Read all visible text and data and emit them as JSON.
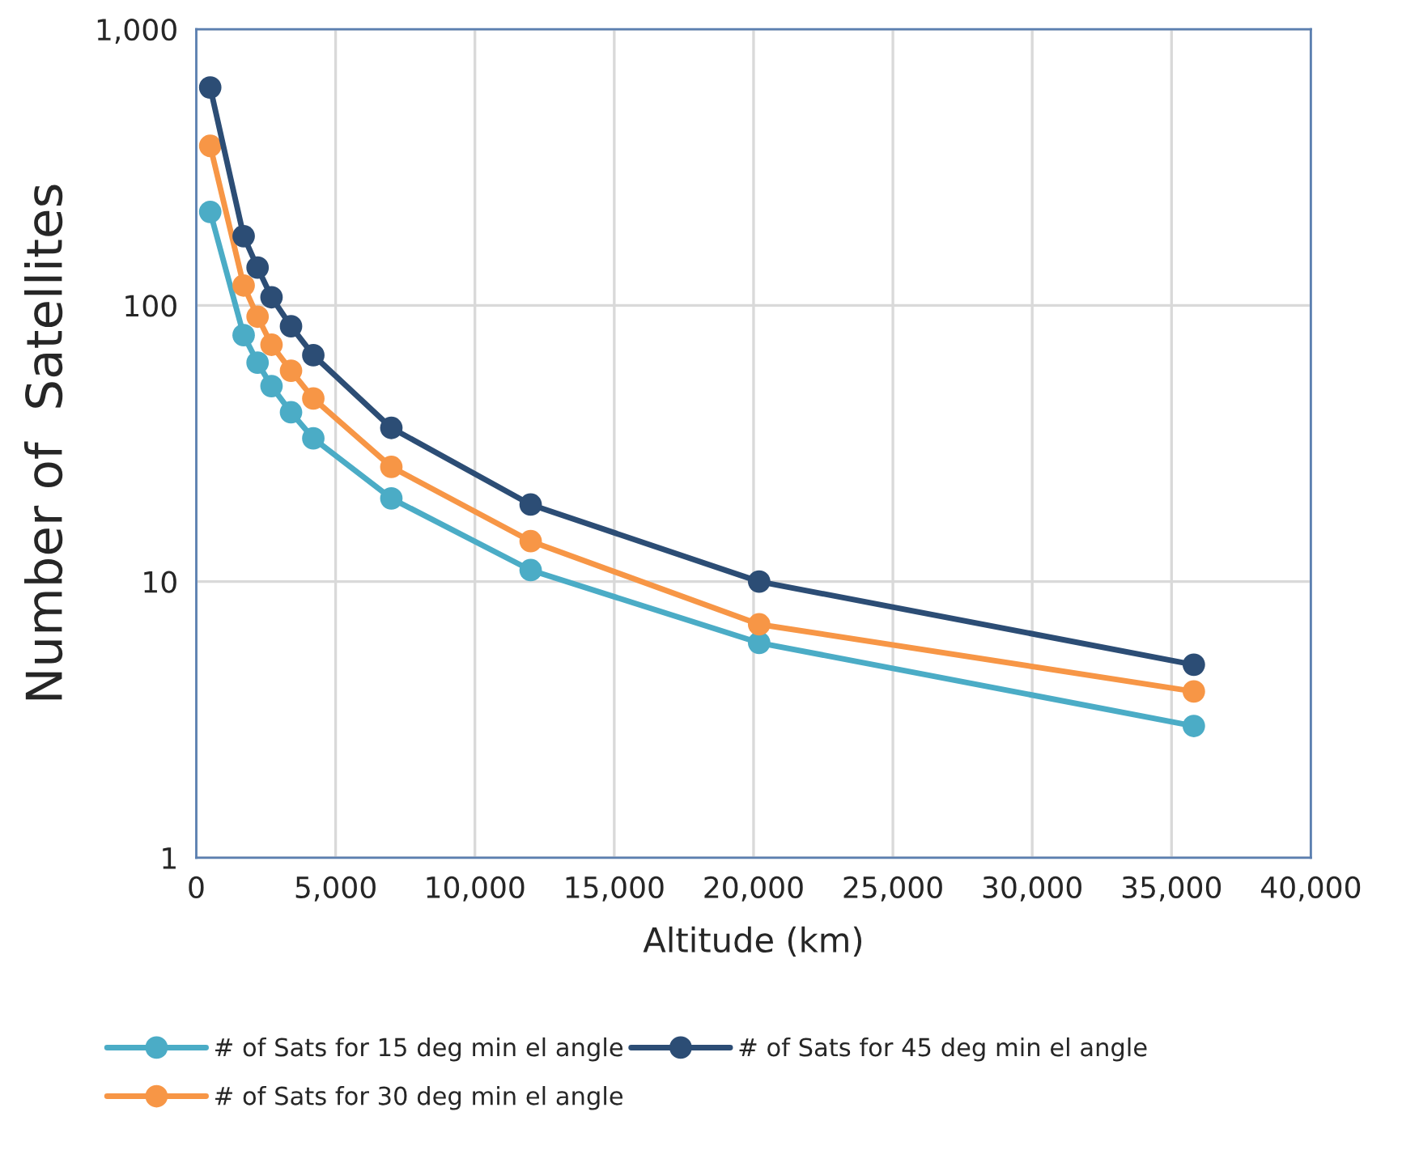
{
  "chart_data": {
    "type": "line",
    "xlabel": "Altitude (km)",
    "ylabel": "Number of  Satellites",
    "x": [
      500,
      1700,
      2200,
      2700,
      3400,
      4200,
      7000,
      12000,
      20200,
      35800
    ],
    "series": [
      {
        "name": "# of Sats for 15 deg min el angle",
        "color": "#4bacc6",
        "values": [
          218,
          78,
          62,
          51,
          41,
          33,
          20,
          11,
          6,
          3
        ]
      },
      {
        "name": "# of Sats for 30 deg min el angle",
        "color": "#f79646",
        "values": [
          378,
          118,
          91,
          72,
          58,
          46,
          26,
          14,
          7,
          4
        ]
      },
      {
        "name": "# of Sats for 45 deg min el angle",
        "color": "#2c4d75",
        "values": [
          615,
          178,
          137,
          107,
          84,
          66,
          36,
          19,
          10,
          5
        ]
      }
    ],
    "log": true,
    "xlim": [
      0,
      40000
    ],
    "xticks": [
      {
        "value": 0,
        "label": "0"
      },
      {
        "value": 5000,
        "label": "5,000"
      },
      {
        "value": 10000,
        "label": "10,000"
      },
      {
        "value": 15000,
        "label": "15,000"
      },
      {
        "value": 20000,
        "label": "20,000"
      },
      {
        "value": 25000,
        "label": "25,000"
      },
      {
        "value": 30000,
        "label": "30,000"
      },
      {
        "value": 35000,
        "label": "35,000"
      },
      {
        "value": 40000,
        "label": "40,000"
      }
    ],
    "ylim": [
      1,
      1000
    ],
    "yticks": [
      1,
      10,
      100,
      {
        "value": 1000,
        "label": "1,000"
      }
    ],
    "grid": true,
    "legend": "bottom",
    "marker": "circle",
    "line_style": "solid"
  }
}
